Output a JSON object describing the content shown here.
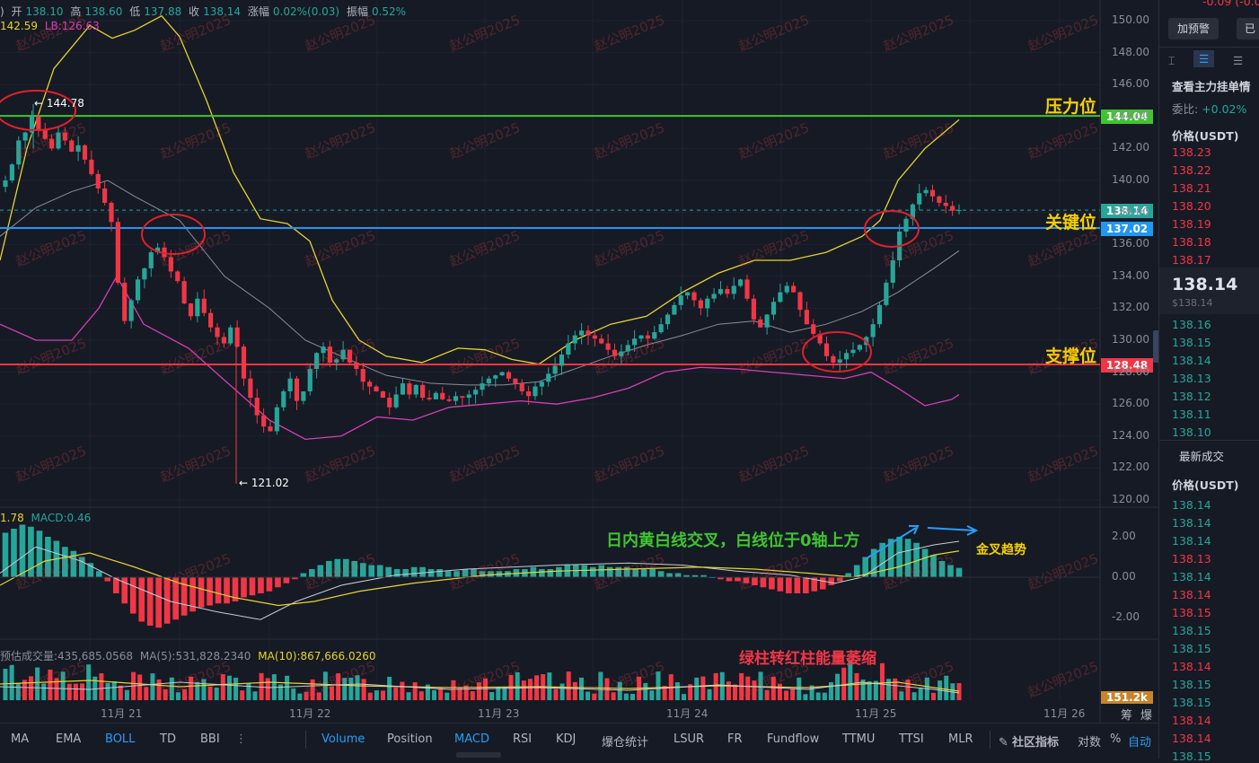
{
  "ohlc": {
    "prefix": ")",
    "open_label": "开",
    "open": "138.10",
    "high_label": "高",
    "high": "138.60",
    "low_label": "低",
    "low": "137.88",
    "close_label": "收",
    "close": "138.14",
    "change_label": "涨幅",
    "change": "0.02%(0.03)",
    "amp_label": "振幅",
    "amp": "0.52%"
  },
  "boll_legend": {
    "ub": "142.59",
    "lb": "LB:126.63"
  },
  "macd_legend": {
    "dif": "1.78",
    "macd": "MACD:0.46"
  },
  "vol_legend": {
    "est": "预估成交量:435,685.0568",
    "ma5": "MA(5):531,828.2340",
    "ma10": "MA(10):867,666.0260"
  },
  "hi_marker": "← 144.78",
  "lo_marker": "← 121.02",
  "price_tags": {
    "resistance": "144.04",
    "current": "138.14",
    "key": "137.02",
    "support": "128.48",
    "volume": "151.2k"
  },
  "levels": {
    "resistance": "压力位",
    "key": "关键位",
    "support": "支撑位"
  },
  "annotations": {
    "cross": "日内黄白线交叉，白线位于0轴上方",
    "golden": "金叉趋势",
    "volume": "绿柱转红柱能量萎缩"
  },
  "watermark": "赵公明2025",
  "price_axis": [
    "150.00",
    "148.00",
    "146.00",
    "144.00",
    "142.00",
    "140.00",
    "138.00",
    "136.00",
    "134.00",
    "132.00",
    "130.00",
    "128.00",
    "126.00",
    "124.00",
    "122.00",
    "120.00"
  ],
  "macd_axis": [
    "2.00",
    "0.00",
    "-2.00"
  ],
  "time_axis": [
    "11月 21",
    "11月 22",
    "11月 23",
    "11月 24",
    "11月 25",
    "11月 26"
  ],
  "toolbar": {
    "main_indicators": [
      "MA",
      "EMA",
      "BOLL",
      "TD",
      "BBI"
    ],
    "active_main": "BOLL",
    "more": "⋮",
    "sub_indicators": [
      "Volume",
      "Position",
      "MACD",
      "RSI",
      "KDJ",
      "爆仓统计",
      "LSUR",
      "FR",
      "Fundflow",
      "TTMU",
      "TTSI",
      "MLR"
    ],
    "active_sub": [
      "Volume",
      "MACD"
    ],
    "community": "社区指标",
    "log": "对数",
    "percent": "%",
    "auto": "自动",
    "chip": "筹",
    "burst": "爆"
  },
  "sidebar": {
    "top_change": "-0.09  (-0.0",
    "alert_button": "加预警",
    "other_button": "已",
    "orderbook_link": "查看主力挂单情",
    "ratio_label": "委比:",
    "ratio_value": "+0.02%",
    "price_header": "价格(USDT)",
    "asks": [
      "138.23",
      "138.22",
      "138.21",
      "138.20",
      "138.19",
      "138.18",
      "138.17"
    ],
    "last_price": "138.14",
    "last_price_usd": "$138.14",
    "bids": [
      "138.16",
      "138.15",
      "138.14",
      "138.13",
      "138.12",
      "138.11",
      "138.10"
    ],
    "trades_title": "最新成交",
    "trades_header": "价格(USDT)",
    "trades": [
      {
        "p": "138.14",
        "c": "green"
      },
      {
        "p": "138.14",
        "c": "green"
      },
      {
        "p": "138.14",
        "c": "green"
      },
      {
        "p": "138.13",
        "c": "red"
      },
      {
        "p": "138.14",
        "c": "green"
      },
      {
        "p": "138.14",
        "c": "red"
      },
      {
        "p": "138.15",
        "c": "red"
      },
      {
        "p": "138.15",
        "c": "green"
      },
      {
        "p": "138.15",
        "c": "green"
      },
      {
        "p": "138.14",
        "c": "red"
      },
      {
        "p": "138.15",
        "c": "green"
      },
      {
        "p": "138.15",
        "c": "green"
      },
      {
        "p": "138.14",
        "c": "red"
      },
      {
        "p": "138.14",
        "c": "red"
      },
      {
        "p": "138.15",
        "c": "green"
      }
    ]
  },
  "colors": {
    "up": "#26a69a",
    "down": "#f23645",
    "resistance": "#3fc52f",
    "key": "#2196f3",
    "support": "#f23645",
    "boll_upper": "#e6d42f",
    "boll_lower": "#d63fb4",
    "boll_mid": "#8a8e99",
    "label": "#f5d000",
    "dif": "#c9ccd4",
    "dea": "#e6d42f"
  }
}
